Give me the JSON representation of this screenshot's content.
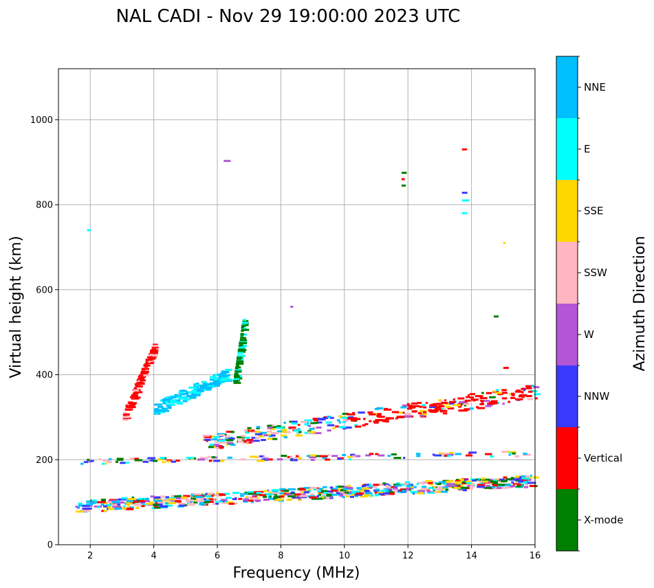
{
  "chart_data": {
    "type": "scatter",
    "title": "NAL CADI - Nov 29 19:00:00 2023 UTC",
    "xlabel": "Frequency (MHz)",
    "ylabel": "Virtual height (km)",
    "xlim": [
      1,
      16
    ],
    "ylim": [
      0,
      1120
    ],
    "x_ticks": [
      2,
      4,
      6,
      8,
      10,
      12,
      14,
      16
    ],
    "x_tick_labels": [
      "2",
      "4",
      "6",
      "8",
      "10",
      "12",
      "14",
      "16"
    ],
    "y_ticks": [
      0,
      200,
      400,
      600,
      800,
      1000
    ],
    "y_tick_labels": [
      "0",
      "200",
      "400",
      "600",
      "800",
      "1000"
    ],
    "grid": true,
    "colorbar": {
      "title": "Azimuth Direction",
      "categories": [
        {
          "label": "X-mode",
          "color": "#008000"
        },
        {
          "label": "Vertical",
          "color": "#ff0000"
        },
        {
          "label": "NNW",
          "color": "#3a3aff"
        },
        {
          "label": "W",
          "color": "#b455d6"
        },
        {
          "label": "SSW",
          "color": "#ffb6c1"
        },
        {
          "label": "SSE",
          "color": "#ffd700"
        },
        {
          "label": "E",
          "color": "#00ffff"
        },
        {
          "label": "NNE",
          "color": "#00bfff"
        }
      ]
    },
    "series": [
      {
        "name": "E-layer trace",
        "x": [
          1.5,
          16
        ],
        "y": [
          90,
          150
        ]
      },
      {
        "name": "F-layer low trace",
        "x": [
          1.5,
          16
        ],
        "y": [
          195,
          215
        ]
      },
      {
        "name": "F-layer trace",
        "x": [
          5.5,
          16
        ],
        "y": [
          240,
          360
        ]
      },
      {
        "name": "Oblique echo (Vertical)",
        "x": [
          3,
          4
        ],
        "y": [
          300,
          470
        ]
      },
      {
        "name": "Oblique echo (E)",
        "x": [
          4,
          6.3
        ],
        "y": [
          320,
          400
        ]
      },
      {
        "name": "Oblique echo (X-mode)",
        "x": [
          6.5,
          6.8
        ],
        "y": [
          380,
          530
        ]
      }
    ],
    "isolated_points": [
      {
        "x": 6.2,
        "y": 903,
        "azimuth": "W"
      },
      {
        "x": 11.8,
        "y": 875,
        "azimuth": "X-mode"
      },
      {
        "x": 11.8,
        "y": 860,
        "azimuth": "Vertical"
      },
      {
        "x": 11.8,
        "y": 845,
        "azimuth": "X-mode"
      },
      {
        "x": 13.7,
        "y": 930,
        "azimuth": "Vertical"
      },
      {
        "x": 13.7,
        "y": 828,
        "azimuth": "NNW"
      },
      {
        "x": 13.7,
        "y": 810,
        "azimuth": "E"
      },
      {
        "x": 13.7,
        "y": 780,
        "azimuth": "E"
      },
      {
        "x": 15.0,
        "y": 710,
        "azimuth": "SSE"
      },
      {
        "x": 14.7,
        "y": 537,
        "azimuth": "X-mode"
      },
      {
        "x": 15.0,
        "y": 416,
        "azimuth": "Vertical"
      },
      {
        "x": 1.9,
        "y": 740,
        "azimuth": "E"
      },
      {
        "x": 8.3,
        "y": 560,
        "azimuth": "W"
      }
    ]
  }
}
